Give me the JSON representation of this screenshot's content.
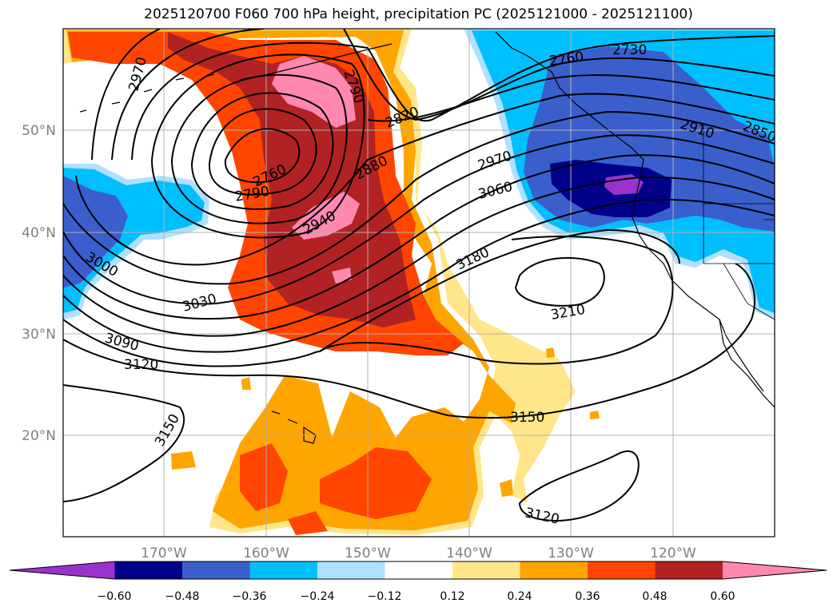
{
  "title": "2025120700 F060 700 hPa height, precipitation PC (2025121000 - 2025121100)",
  "map": {
    "lon_range": [
      -180,
      -110
    ],
    "lat_range": [
      10,
      60
    ],
    "lon_ticks": [
      "170°W",
      "160°W",
      "150°W",
      "140°W",
      "130°W",
      "120°W"
    ],
    "lat_ticks": [
      "20°N",
      "30°N",
      "40°N",
      "50°N"
    ],
    "gridlines": true
  },
  "colorbar": {
    "levels": [
      "−0.60",
      "−0.48",
      "−0.36",
      "−0.24",
      "−0.12",
      "0.12",
      "0.24",
      "0.36",
      "0.48",
      "0.60"
    ],
    "colors": [
      "#9932cc",
      "#00008b",
      "#3a5fcd",
      "#00bfff",
      "#b0e0ff",
      "#ffffff",
      "#ffe68a",
      "#ffa500",
      "#ff4500",
      "#b22222",
      "#ff88b0"
    ],
    "extend": "both"
  },
  "height_contours": {
    "units": "gpm",
    "labels": [
      "2730",
      "2760",
      "2760",
      "2790",
      "2790",
      "2820",
      "2850",
      "2880",
      "2910",
      "2940",
      "2970",
      "2970",
      "3000",
      "3030",
      "3060",
      "3090",
      "3120",
      "3120",
      "3150",
      "3150",
      "3180",
      "3210"
    ]
  },
  "precip_regions": [
    {
      "name": "northwest-ridge",
      "level": "positive",
      "max": "0.60"
    },
    {
      "name": "pacific-northwest",
      "level": "negative",
      "min": "−0.60"
    },
    {
      "name": "west-pacific",
      "level": "negative",
      "min": "−0.48"
    },
    {
      "name": "subtropical-hawaii",
      "level": "positive",
      "max": "0.48"
    }
  ]
}
